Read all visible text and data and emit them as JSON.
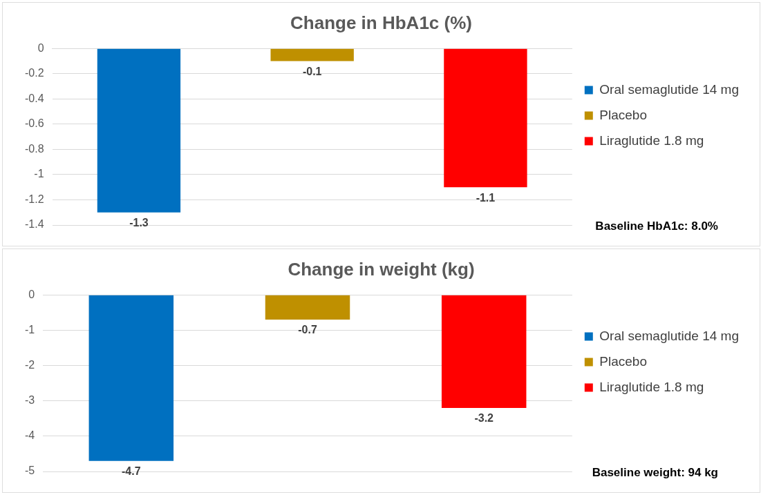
{
  "chart_data": [
    {
      "type": "bar",
      "title": "Change in HbA1c (%)",
      "categories": [
        null,
        null,
        null
      ],
      "series": [
        {
          "name": "Oral semaglutide 14 mg",
          "color": "#0070c0",
          "values": [
            -1.3,
            null,
            null
          ]
        },
        {
          "name": "Placebo",
          "color": "#bf9000",
          "values": [
            null,
            -0.1,
            null
          ]
        },
        {
          "name": "Liraglutide 1.8 mg",
          "color": "#ff0000",
          "values": [
            null,
            null,
            -1.1
          ]
        }
      ],
      "ylim": [
        -1.4,
        0
      ],
      "yticks": [
        -1.4,
        -1.2,
        -1,
        -0.8,
        -0.6,
        -0.4,
        -0.2,
        0
      ],
      "grid": "y",
      "legend": "right",
      "tick_labels": "y",
      "data_labels": true,
      "annotations": [
        "Baseline HbA1c: 8.0%"
      ]
    },
    {
      "type": "bar",
      "title": "Change in weight (kg)",
      "categories": [
        null,
        null,
        null
      ],
      "series": [
        {
          "name": "Oral semaglutide 14 mg",
          "color": "#0070c0",
          "values": [
            -4.7,
            null,
            null
          ]
        },
        {
          "name": "Placebo",
          "color": "#bf9000",
          "values": [
            null,
            -0.7,
            null
          ]
        },
        {
          "name": "Liraglutide 1.8 mg",
          "color": "#ff0000",
          "values": [
            null,
            null,
            -3.2
          ]
        }
      ],
      "ylim": [
        -5,
        0
      ],
      "yticks": [
        -5,
        -4,
        -3,
        -2,
        -1,
        0
      ],
      "grid": "y",
      "legend": "right",
      "tick_labels": "y",
      "data_labels": true,
      "annotations": [
        "Baseline weight: 94 kg"
      ]
    }
  ]
}
